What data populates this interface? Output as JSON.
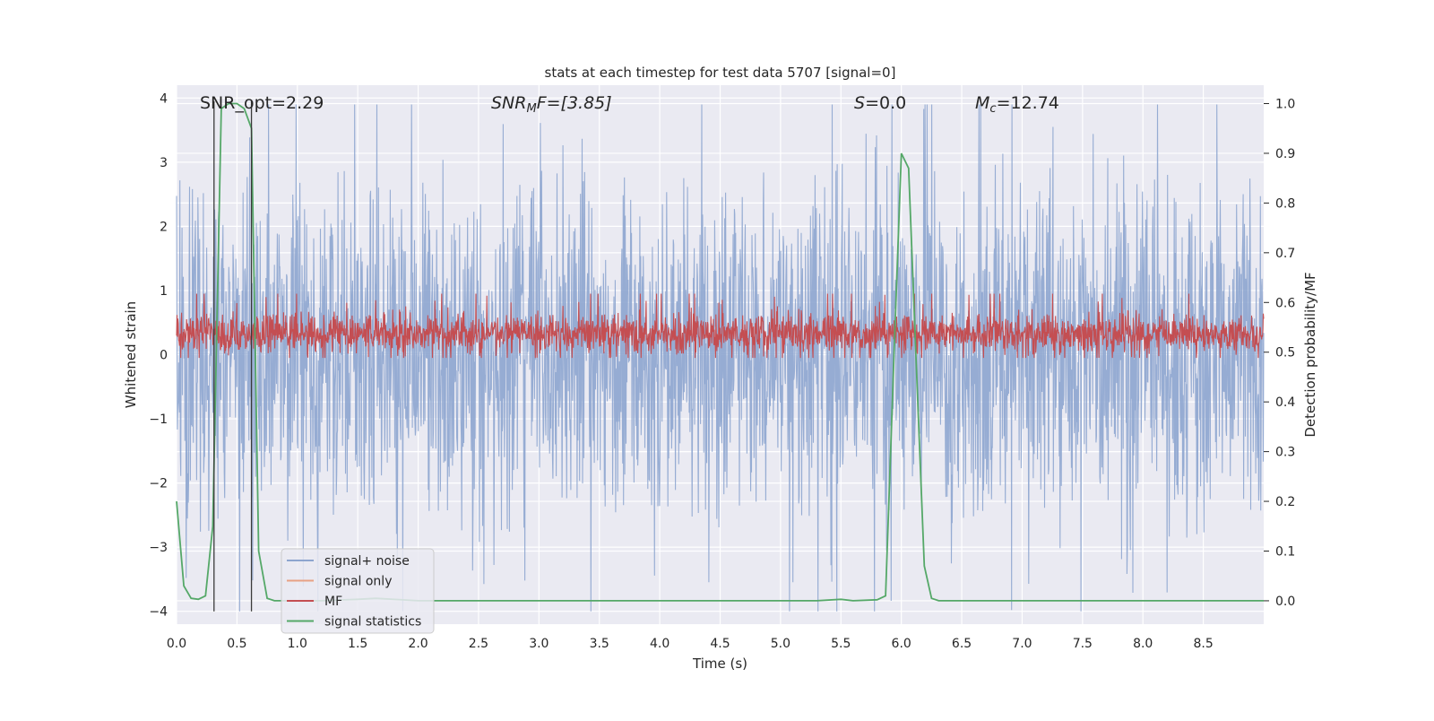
{
  "chart_data": {
    "type": "line",
    "title": "stats at each timestep for test data 5707 [signal=0]",
    "xlabel": "Time (s)",
    "ylabel": "Whitened strain",
    "y2label": "Detection probability/MF",
    "xlim": [
      0,
      9.0
    ],
    "ylim": [
      -4.2,
      4.2
    ],
    "y2lim": [
      -0.047,
      1.037
    ],
    "x_ticks": [
      "0.0",
      "0.5",
      "1.0",
      "1.5",
      "2.0",
      "2.5",
      "3.0",
      "3.5",
      "4.0",
      "4.5",
      "5.0",
      "5.5",
      "6.0",
      "6.5",
      "7.0",
      "7.5",
      "8.0",
      "8.5"
    ],
    "y_ticks": [
      "−4",
      "−3",
      "−2",
      "−1",
      "0",
      "1",
      "2",
      "3",
      "4"
    ],
    "y2_ticks": [
      "0.0",
      "0.1",
      "0.2",
      "0.3",
      "0.4",
      "0.5",
      "0.6",
      "0.7",
      "0.8",
      "0.9",
      "1.0"
    ],
    "grid": true,
    "legend_position": "lower-left",
    "annotations": {
      "snr_opt": "SNR_opt=2.29",
      "snr_mf_main": "SNR",
      "snr_mf_sub": "M",
      "snr_mf_rest": "F=[3.85]",
      "s_italic": "S",
      "s_rest": "=0.0",
      "mc_main": "M",
      "mc_sub": "c",
      "mc_rest": "=12.74"
    },
    "vertical_markers": [
      0.31,
      0.62
    ],
    "series": [
      {
        "name": "signal+ noise",
        "color": "#8da5cf",
        "axis": "left",
        "noise_envelope": {
          "typical_low": -1.6,
          "typical_high": 1.6,
          "spike_min": -4.0,
          "spike_max": 3.9
        }
      },
      {
        "name": "signal only",
        "color": "#e8a184",
        "axis": "left",
        "values": []
      },
      {
        "name": "MF",
        "color": "#c44e52",
        "axis": "left",
        "noise_envelope": {
          "typical_low": 0.0,
          "typical_high": 0.65,
          "spike_min": -0.05,
          "spike_max": 0.95
        }
      },
      {
        "name": "signal statistics",
        "color": "#55a868",
        "axis": "right",
        "x": [
          0.0,
          0.06,
          0.12,
          0.18,
          0.24,
          0.3,
          0.37,
          0.43,
          0.5,
          0.56,
          0.62,
          0.68,
          0.75,
          0.81,
          0.87,
          0.93,
          1.2,
          1.5,
          1.65,
          2.0,
          3.0,
          4.0,
          5.0,
          5.3,
          5.5,
          5.6,
          5.8,
          5.87,
          5.94,
          6.0,
          6.06,
          6.12,
          6.19,
          6.25,
          6.31,
          6.5,
          7.0,
          8.0,
          9.0
        ],
        "values": [
          0.2,
          0.03,
          0.005,
          0.003,
          0.01,
          0.15,
          0.99,
          1.0,
          1.0,
          0.99,
          0.95,
          0.1,
          0.005,
          0.0,
          0.0,
          0.0,
          0.0,
          0.003,
          0.005,
          0.0,
          0.0,
          0.0,
          0.0,
          0.0,
          0.003,
          0.0,
          0.002,
          0.01,
          0.5,
          0.9,
          0.87,
          0.5,
          0.07,
          0.005,
          0.0,
          0.0,
          0.0,
          0.0,
          0.0
        ]
      }
    ]
  }
}
